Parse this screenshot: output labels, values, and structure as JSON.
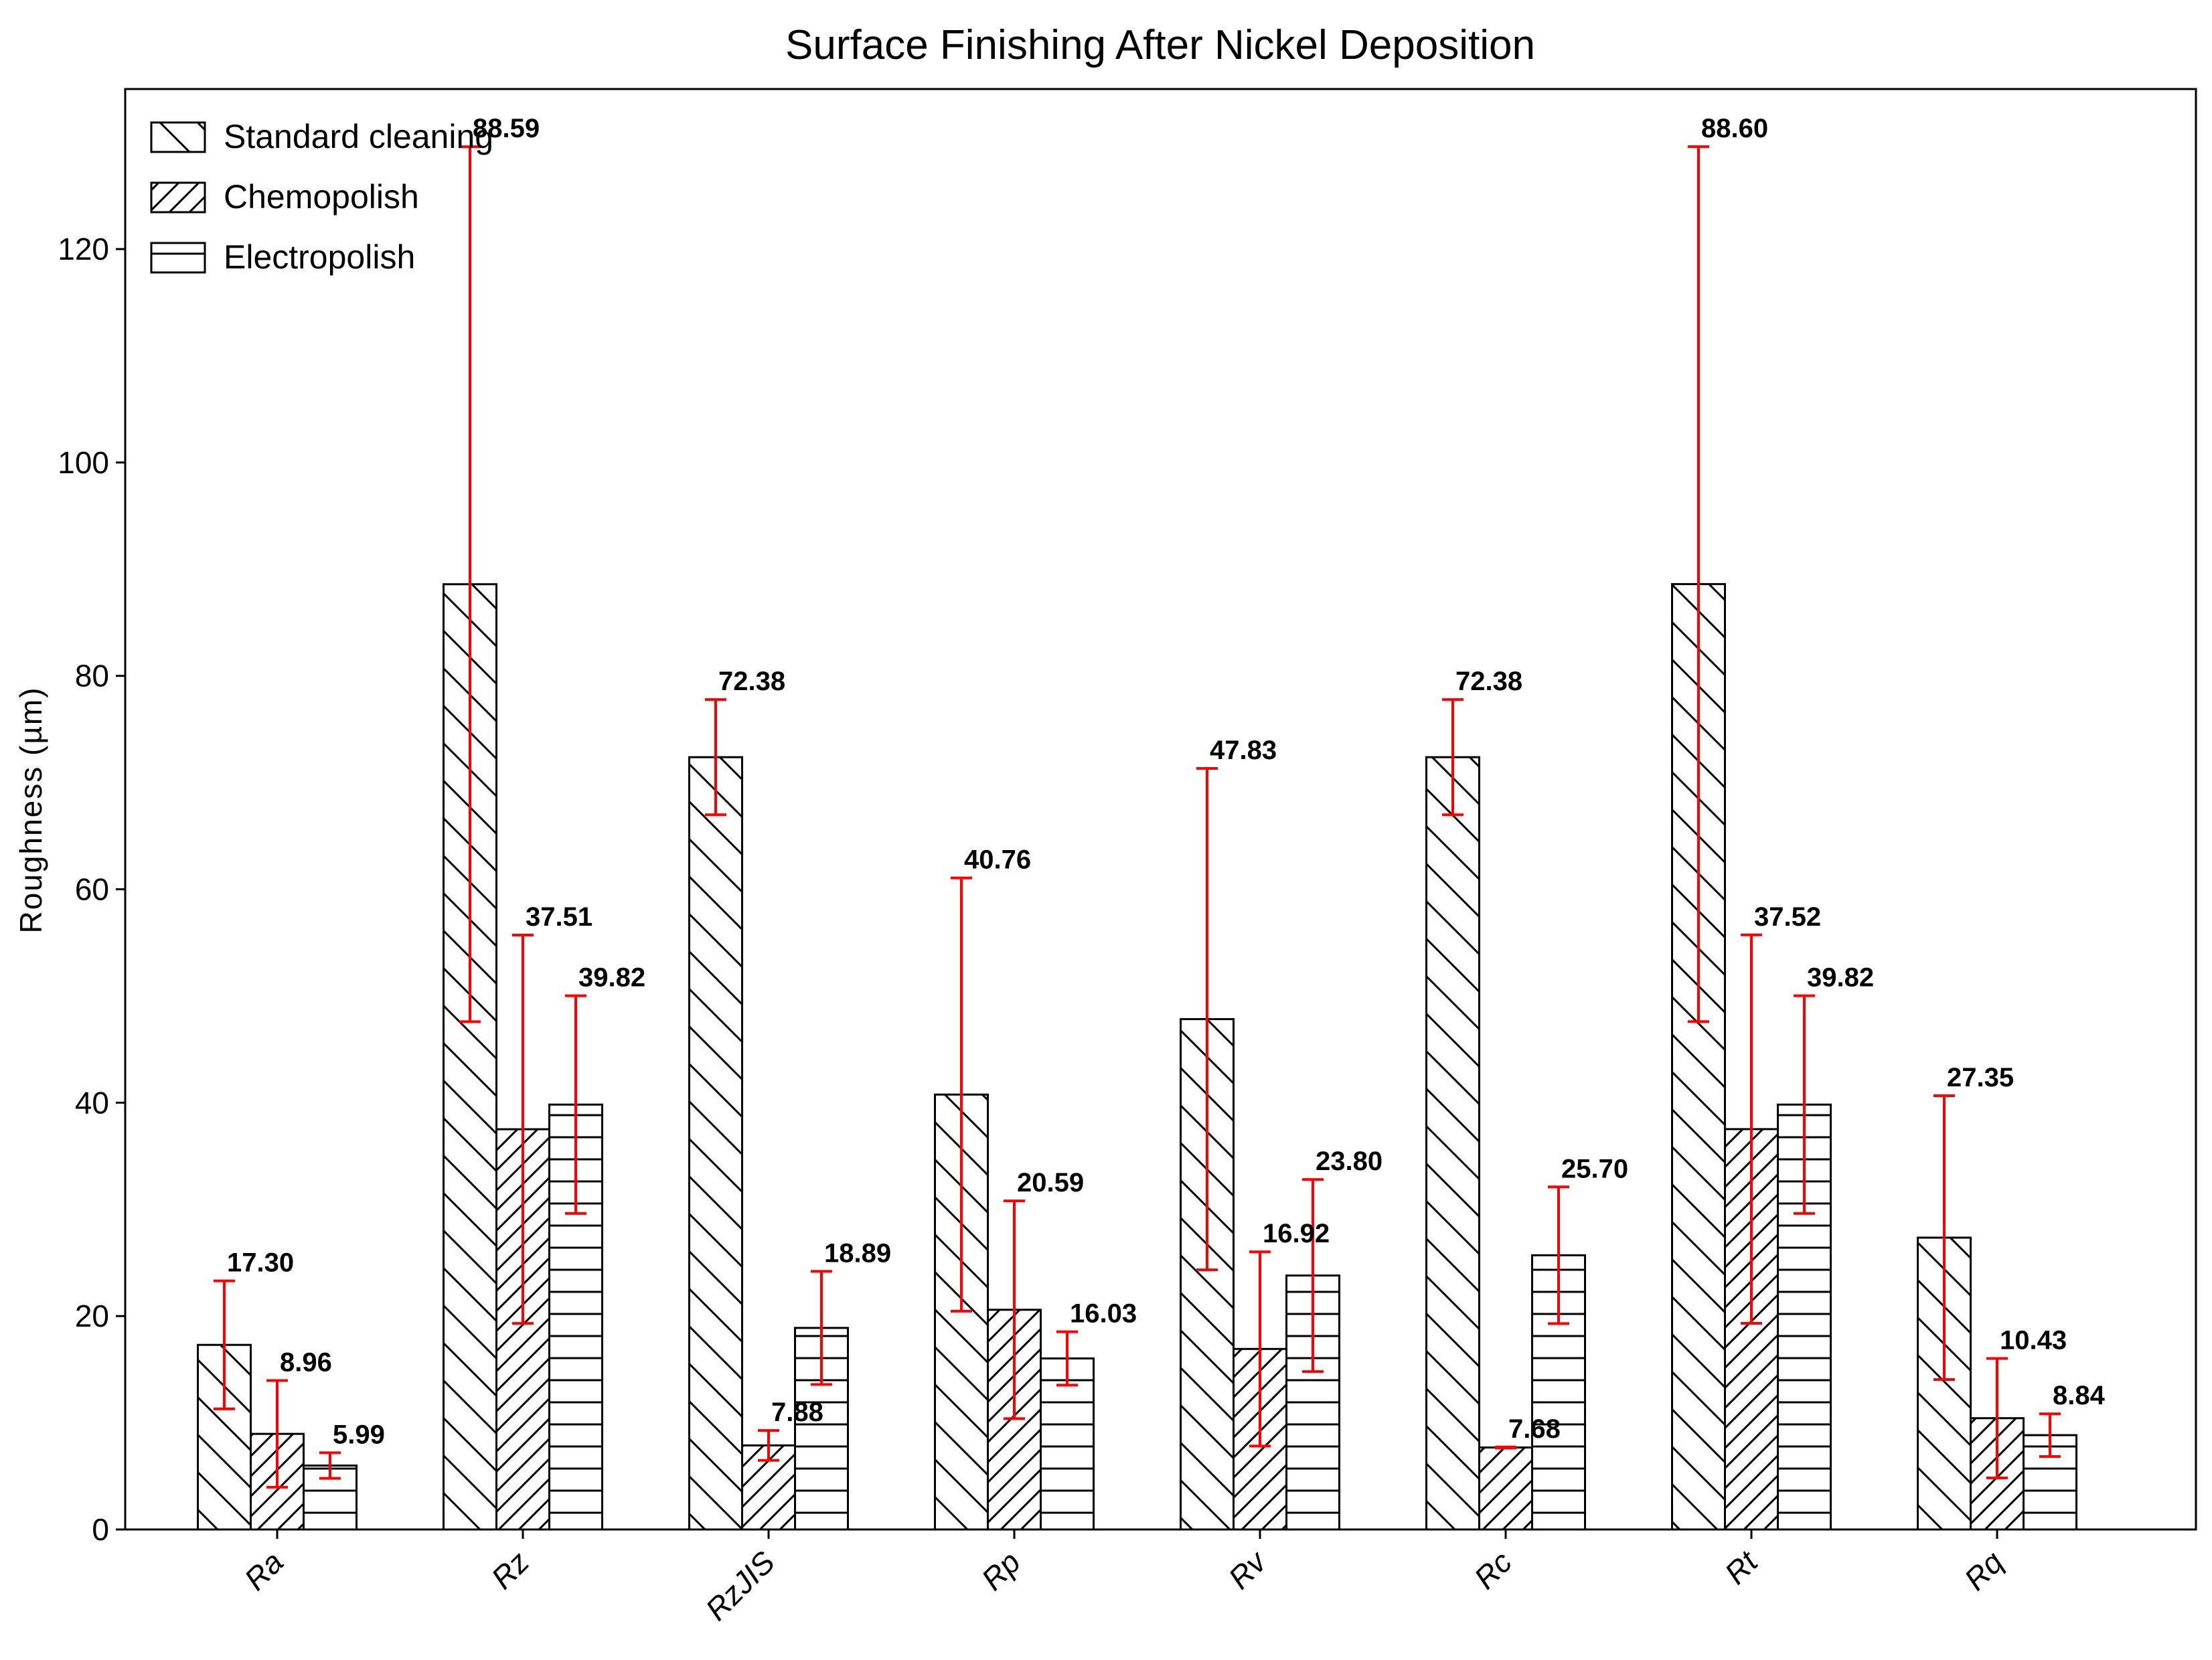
{
  "chart_data": {
    "type": "bar",
    "title": "Surface Finishing After Nickel Deposition",
    "xlabel": "",
    "ylabel": "Roughness (µm)",
    "ylim": [
      0,
      135
    ],
    "yticks": [
      0,
      20,
      40,
      60,
      80,
      100,
      120
    ],
    "categories": [
      "Ra",
      "Rz",
      "RzJIS",
      "Rp",
      "Rv",
      "Rc",
      "Rt",
      "Rq"
    ],
    "grid": false,
    "legend_position": "top-left",
    "error_bar_color": "#ff0000",
    "series": [
      {
        "name": "Standard cleaning",
        "hatch": "backslash",
        "values": [
          17.3,
          88.59,
          72.38,
          40.76,
          47.83,
          72.38,
          88.6,
          27.35
        ],
        "labels": [
          "17.30",
          "88.59",
          "72.38",
          "40.76",
          "47.83",
          "72.38",
          "88.60",
          "27.35"
        ],
        "errors": [
          6,
          41,
          5.4,
          20.3,
          23.5,
          5.4,
          41,
          13.3
        ]
      },
      {
        "name": "Chemopolish",
        "hatch": "slash",
        "values": [
          8.96,
          37.51,
          7.88,
          20.59,
          16.92,
          7.68,
          37.52,
          10.43
        ],
        "labels": [
          "8.96",
          "37.51",
          "7.88",
          "20.59",
          "16.92",
          "7.68",
          "37.52",
          "10.43"
        ],
        "errors": [
          5,
          18.2,
          1.4,
          10.2,
          9.1,
          0.05,
          18.2,
          5.6
        ]
      },
      {
        "name": "Electropolish",
        "hatch": "horizontal",
        "values": [
          5.99,
          39.82,
          18.89,
          16.03,
          23.8,
          25.7,
          39.82,
          8.84
        ],
        "labels": [
          "5.99",
          "39.82",
          "18.89",
          "16.03",
          "23.80",
          "25.70",
          "39.82",
          "8.84"
        ],
        "errors": [
          1.2,
          10.2,
          5.3,
          2.5,
          9,
          6.4,
          10.2,
          2
        ]
      }
    ]
  }
}
